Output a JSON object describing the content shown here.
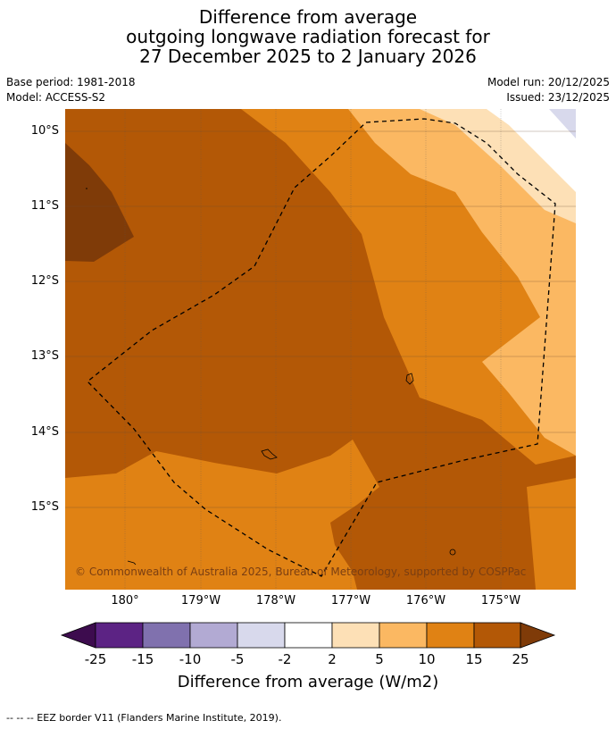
{
  "title": {
    "line1": "Difference from average",
    "line2": "outgoing longwave radiation forecast for",
    "line3": "27 December 2025 to 2 January 2026"
  },
  "meta": {
    "base_period": "Base period: 1981-2018",
    "model": "Model: ACCESS-S2",
    "model_run": "Model run: 20/12/2025",
    "issued": "Issued: 23/12/2025"
  },
  "map": {
    "lat_labels": [
      "10°S",
      "11°S",
      "12°S",
      "13°S",
      "14°S",
      "15°S"
    ],
    "lon_labels": [
      "180°",
      "179°W",
      "178°W",
      "177°W",
      "176°W",
      "175°W"
    ],
    "copyright": "© Commonwealth of Australia 2025, Bureau of Meteorology, supported by COSPPac"
  },
  "colorbar": {
    "ticks": [
      "-25",
      "-15",
      "-10",
      "-5",
      "-2",
      "2",
      "5",
      "10",
      "15",
      "25"
    ],
    "colors": {
      "below_-25": "#3d0c4e",
      "-25_-15": "#5c2384",
      "-15_-10": "#8071ae",
      "-10_-5": "#b2aad3",
      "-5_-2": "#d8d9ec",
      "-2_2": "#ffffff",
      "2_5": "#fde0b6",
      "5_10": "#fbb862",
      "10_15": "#e08214",
      "15_25": "#b35806",
      "above_25": "#7f3b08"
    },
    "label": "Difference from average (W/m2)"
  },
  "footer": "--  --  -- EEZ border V11 (Flanders Marine Institute, 2019)."
}
